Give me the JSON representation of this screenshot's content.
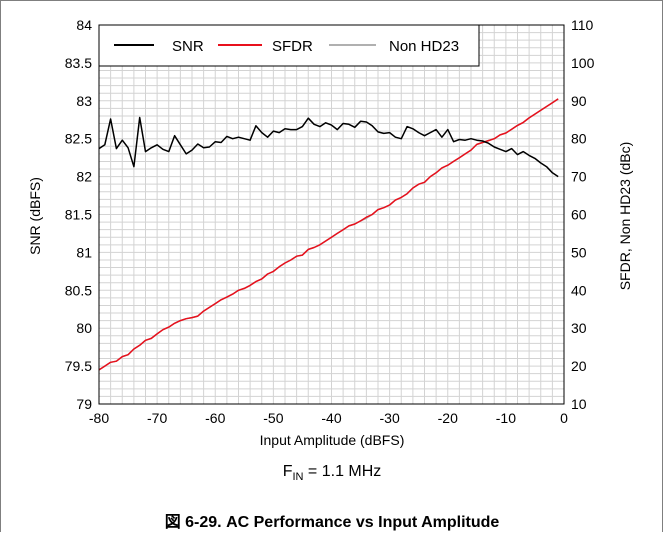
{
  "caption": {
    "fig_label": "図 6-29.",
    "title": "AC Performance vs Input Amplitude"
  },
  "condition": {
    "prefix": "F",
    "subscript": "IN",
    "value": " = 1.1 MHz"
  },
  "chart_data": {
    "type": "line",
    "xlabel": "Input Amplitude (dBFS)",
    "ylabel": "SNR (dBFS)",
    "y2label": "SFDR, Non HD23 (dBc)",
    "xlim": [
      -80,
      0
    ],
    "ylim": [
      79,
      84
    ],
    "y2lim": [
      10,
      110
    ],
    "xticks": [
      -80,
      -70,
      -60,
      -50,
      -40,
      -30,
      -20,
      -10,
      0
    ],
    "yticks": [
      "79",
      "79.5",
      "80",
      "80.5",
      "81",
      "81.5",
      "82",
      "82.5",
      "83",
      "83.5",
      "84"
    ],
    "y2ticks": [
      10,
      20,
      30,
      40,
      50,
      60,
      70,
      80,
      90,
      100,
      110
    ],
    "grid": true,
    "legend_position": "top-left",
    "colors": {
      "SNR": "#000000",
      "SFDR": "#e8101c",
      "Non HD23": "#b0b0b0",
      "grid": "#d3d3d3"
    },
    "series": [
      {
        "name": "SNR",
        "axis": "left",
        "x": [
          -80,
          -79,
          -78,
          -77,
          -76,
          -75,
          -74,
          -73,
          -72,
          -71,
          -70,
          -69,
          -68,
          -67,
          -66,
          -65,
          -64,
          -63,
          -62,
          -61,
          -60,
          -59,
          -58,
          -57,
          -56,
          -55,
          -54,
          -53,
          -52,
          -51,
          -50,
          -49,
          -48,
          -47,
          -46,
          -45,
          -44,
          -43,
          -42,
          -41,
          -40,
          -39,
          -38,
          -37,
          -36,
          -35,
          -34,
          -33,
          -32,
          -31,
          -30,
          -29,
          -28,
          -27,
          -26,
          -25,
          -24,
          -23,
          -22,
          -21,
          -20,
          -19,
          -18,
          -17,
          -16,
          -15,
          -14,
          -13,
          -12,
          -11,
          -10,
          -9,
          -8,
          -7,
          -6,
          -5,
          -4,
          -3,
          -2,
          -1
        ],
        "values": [
          82.37,
          82.42,
          82.76,
          82.37,
          82.48,
          82.38,
          82.13,
          82.78,
          82.33,
          82.38,
          82.42,
          82.36,
          82.33,
          82.54,
          82.42,
          82.3,
          82.35,
          82.43,
          82.38,
          82.39,
          82.46,
          82.45,
          82.53,
          82.5,
          82.52,
          82.5,
          82.48,
          82.67,
          82.58,
          82.52,
          82.6,
          82.58,
          82.63,
          82.62,
          82.62,
          82.66,
          82.77,
          82.69,
          82.66,
          82.71,
          82.68,
          82.62,
          82.7,
          82.69,
          82.65,
          82.73,
          82.72,
          82.67,
          82.59,
          82.57,
          82.58,
          82.52,
          82.5,
          82.66,
          82.63,
          82.58,
          82.54,
          82.58,
          82.62,
          82.52,
          82.62,
          82.46,
          82.49,
          82.48,
          82.5,
          82.48,
          82.47,
          82.44,
          82.39,
          82.36,
          82.33,
          82.37,
          82.29,
          82.33,
          82.28,
          82.24,
          82.18,
          82.13,
          82.05,
          82.0
        ]
      },
      {
        "name": "SFDR",
        "axis": "right",
        "x": [
          -80,
          -79,
          -78,
          -77,
          -76,
          -75,
          -74,
          -73,
          -72,
          -71,
          -70,
          -69,
          -68,
          -67,
          -66,
          -65,
          -64,
          -63,
          -62,
          -61,
          -60,
          -59,
          -58,
          -57,
          -56,
          -55,
          -54,
          -53,
          -52,
          -51,
          -50,
          -49,
          -48,
          -47,
          -46,
          -45,
          -44,
          -43,
          -42,
          -41,
          -40,
          -39,
          -38,
          -37,
          -36,
          -35,
          -34,
          -33,
          -32,
          -31,
          -30,
          -29,
          -28,
          -27,
          -26,
          -25,
          -24,
          -23,
          -22,
          -21,
          -20,
          -19,
          -18,
          -17,
          -16,
          -15,
          -14,
          -13,
          -12,
          -11,
          -10,
          -9,
          -8,
          -7,
          -6,
          -5,
          -4,
          -3,
          -2,
          -1
        ],
        "values": [
          19.0,
          20.0,
          21.0,
          21.3,
          22.5,
          23.0,
          24.5,
          25.5,
          26.8,
          27.3,
          28.5,
          29.6,
          30.3,
          31.3,
          32.0,
          32.5,
          32.8,
          33.2,
          34.5,
          35.5,
          36.5,
          37.5,
          38.2,
          39.0,
          40.0,
          40.5,
          41.3,
          42.3,
          43.0,
          44.3,
          45.0,
          46.2,
          47.2,
          48.0,
          49.0,
          49.3,
          50.8,
          51.3,
          52.0,
          53.0,
          54.0,
          55.0,
          56.0,
          57.0,
          57.5,
          58.3,
          59.3,
          60.0,
          61.3,
          61.8,
          62.5,
          63.8,
          64.5,
          65.5,
          67.0,
          68.0,
          68.5,
          70.0,
          71.0,
          72.3,
          73.0,
          74.0,
          75.0,
          76.0,
          77.0,
          78.5,
          79.0,
          79.5,
          80.0,
          81.0,
          81.5,
          82.5,
          83.5,
          84.3,
          85.5,
          86.5,
          87.5,
          88.5,
          89.5,
          90.5
        ]
      },
      {
        "name": "Non HD23",
        "axis": "right",
        "x": [
          -80,
          -79,
          -78,
          -77,
          -76,
          -75,
          -74,
          -73,
          -72,
          -71,
          -70,
          -69,
          -68,
          -67,
          -66,
          -65,
          -64,
          -63,
          -62,
          -61,
          -60,
          -59,
          -58,
          -57,
          -56,
          -55,
          -54,
          -53,
          -52,
          -51,
          -50,
          -49,
          -48,
          -47,
          -46,
          -45,
          -44,
          -43,
          -42,
          -41,
          -40,
          -39,
          -38,
          -37,
          -36,
          -35,
          -34,
          -33,
          -32,
          -31,
          -30,
          -29,
          -28,
          -27,
          -26,
          -25,
          -24,
          -23,
          -22,
          -21,
          -20,
          -19,
          -18,
          -17,
          -16,
          -15,
          -14,
          -13,
          -12,
          -11,
          -10,
          -9,
          -8,
          -7,
          -6,
          -5,
          -4,
          -3,
          -2,
          -1
        ],
        "values": [
          19.0,
          20.0,
          21.0,
          21.3,
          22.5,
          23.0,
          24.5,
          25.5,
          26.8,
          27.3,
          28.5,
          29.6,
          30.3,
          31.3,
          32.0,
          32.5,
          32.8,
          33.2,
          34.5,
          35.5,
          36.5,
          37.5,
          38.2,
          39.0,
          40.0,
          40.5,
          41.3,
          42.3,
          43.0,
          44.3,
          45.0,
          46.2,
          47.2,
          48.0,
          49.0,
          49.3,
          50.8,
          51.3,
          52.0,
          53.0,
          54.0,
          55.0,
          56.0,
          57.0,
          57.5,
          58.3,
          59.0,
          60.0,
          61.3,
          61.8,
          62.5,
          63.8,
          64.5,
          65.5,
          67.0,
          68.0,
          68.5,
          70.0,
          71.0,
          72.3,
          73.0,
          74.0,
          75.0,
          76.0,
          77.0,
          78.5,
          79.0,
          79.5,
          80.0,
          81.0,
          81.5,
          82.5,
          83.5,
          84.3,
          85.5,
          86.5,
          87.5,
          88.5,
          89.5,
          90.5
        ]
      }
    ]
  }
}
